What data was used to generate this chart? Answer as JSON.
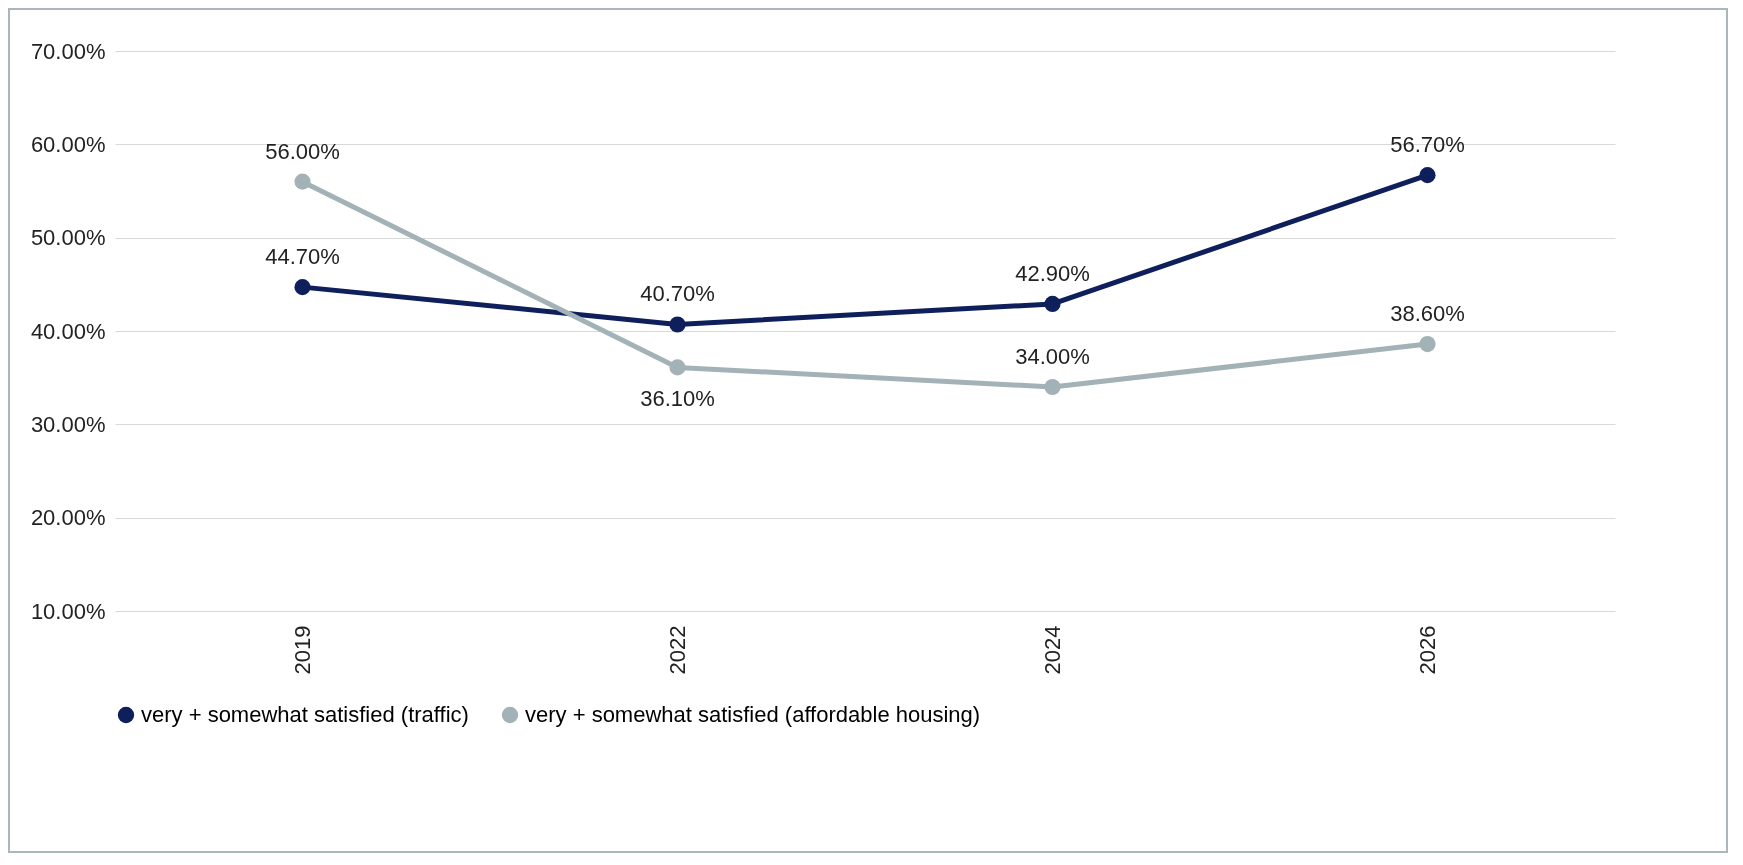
{
  "chart_data": {
    "type": "line",
    "categories": [
      "2019",
      "2022",
      "2024",
      "2026"
    ],
    "series": [
      {
        "name": "very + somewhat satisfied (traffic)",
        "color": "#0e1f5b",
        "values": [
          44.7,
          40.7,
          42.9,
          56.7
        ],
        "value_labels": [
          "44.70%",
          "40.70%",
          "42.90%",
          "56.70%"
        ]
      },
      {
        "name": "very + somewhat satisfied (affordable housing)",
        "color": "#a3b2b6",
        "values": [
          56.0,
          36.1,
          34.0,
          38.6
        ],
        "value_labels": [
          "56.00%",
          "36.10%",
          "34.00%",
          "38.60%"
        ]
      }
    ],
    "ylim": [
      10,
      70
    ],
    "yticks": [
      {
        "value": 10,
        "label": "10.00%"
      },
      {
        "value": 20,
        "label": "20.00%"
      },
      {
        "value": 30,
        "label": "30.00%"
      },
      {
        "value": 40,
        "label": "40.00%"
      },
      {
        "value": 50,
        "label": "50.00%"
      },
      {
        "value": 60,
        "label": "60.00%"
      },
      {
        "value": 70,
        "label": "70.00%"
      }
    ],
    "grid": "y",
    "legend": "bottom",
    "marker": "circle",
    "line_style": "solid"
  }
}
